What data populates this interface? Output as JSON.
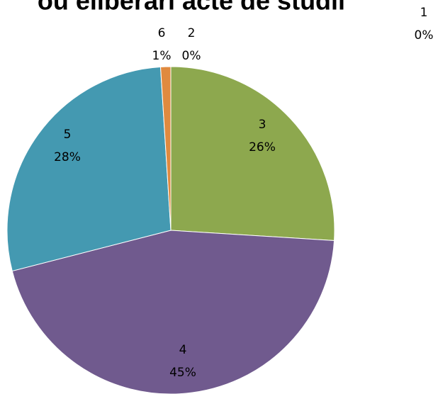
{
  "chart_data": {
    "type": "pie",
    "title": "ou eliberari acte de studii",
    "categories": [
      "1",
      "2",
      "3",
      "4",
      "5",
      "6"
    ],
    "values": [
      0,
      0,
      26,
      45,
      28,
      1
    ],
    "value_labels": [
      "0%",
      "0%",
      "26%",
      "45%",
      "28%",
      "1%"
    ],
    "colors": [
      "#4f81bd",
      "#c0504d",
      "#8da84e",
      "#705a8e",
      "#4499b1",
      "#e08a3f"
    ]
  }
}
